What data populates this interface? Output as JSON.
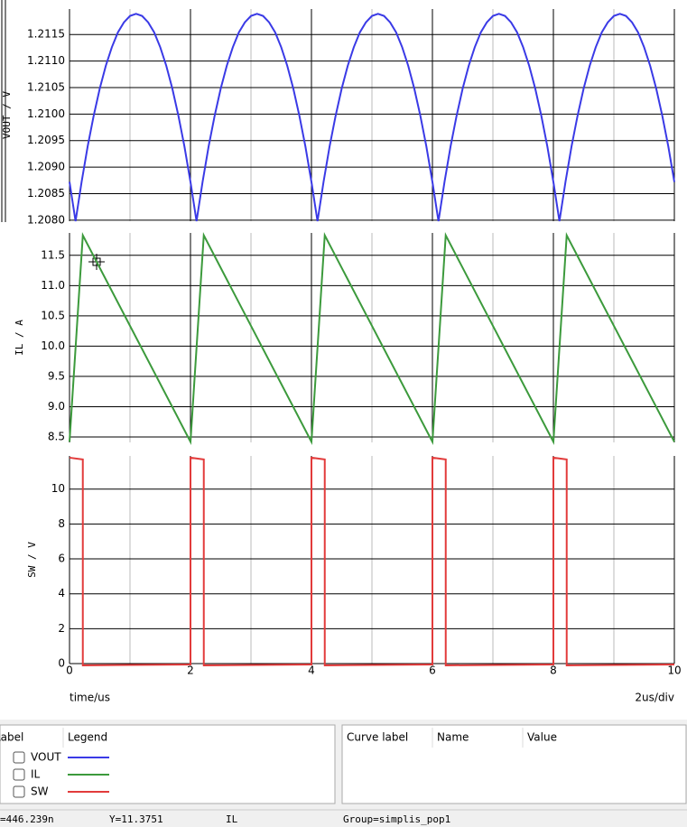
{
  "chart_data": [
    {
      "type": "line",
      "ylabel": "VOUT / V",
      "x": [
        0,
        0.1,
        0.2,
        0.3,
        0.4,
        0.5,
        0.6,
        0.7,
        0.8,
        0.9,
        1,
        1.1,
        1.2,
        1.3,
        1.4,
        1.5,
        1.6,
        1.7,
        1.8,
        1.9,
        2,
        2.1,
        2.2,
        2.3,
        2.4,
        2.5,
        2.6,
        2.7,
        2.8,
        2.9,
        3,
        3.1,
        3.2,
        3.3,
        3.4,
        3.5,
        3.6,
        3.7,
        3.8,
        3.9,
        4,
        4.1,
        4.2,
        4.3,
        4.4,
        4.5,
        4.6,
        4.7,
        4.8,
        4.9,
        5,
        5.1,
        5.2,
        5.3,
        5.4,
        5.5,
        5.6,
        5.7,
        5.8,
        5.9,
        6,
        6.1,
        6.2,
        6.3,
        6.4,
        6.5,
        6.6,
        6.7,
        6.8,
        6.9,
        7,
        7.1,
        7.2,
        7.3,
        7.4,
        7.5,
        7.6,
        7.7,
        7.8,
        7.9,
        8,
        8.1,
        8.2,
        8.3,
        8.4,
        8.5,
        8.6,
        8.7,
        8.8,
        8.9,
        9,
        9.1,
        9.2,
        9.3,
        9.4,
        9.5,
        9.6,
        9.7,
        9.8,
        9.9,
        10
      ],
      "series": [
        {
          "name": "VOUT",
          "color": "#3a3ae6",
          "values": [
            1.20872,
            1.20798,
            1.20872,
            1.20939,
            1.20997,
            1.21048,
            1.21091,
            1.21126,
            1.21154,
            1.21173,
            1.21185,
            1.21189,
            1.21185,
            1.21173,
            1.21154,
            1.21126,
            1.21091,
            1.21048,
            1.20997,
            1.20939,
            1.20872,
            1.20798,
            1.20872,
            1.20939,
            1.20997,
            1.21048,
            1.21091,
            1.21126,
            1.21154,
            1.21173,
            1.21185,
            1.21189,
            1.21185,
            1.21173,
            1.21154,
            1.21126,
            1.21091,
            1.21048,
            1.20997,
            1.20939,
            1.20872,
            1.20798,
            1.20872,
            1.20939,
            1.20997,
            1.21048,
            1.21091,
            1.21126,
            1.21154,
            1.21173,
            1.21185,
            1.21189,
            1.21185,
            1.21173,
            1.21154,
            1.21126,
            1.21091,
            1.21048,
            1.20997,
            1.20939,
            1.20872,
            1.20798,
            1.20872,
            1.20939,
            1.20997,
            1.21048,
            1.21091,
            1.21126,
            1.21154,
            1.21173,
            1.21185,
            1.21189,
            1.21185,
            1.21173,
            1.21154,
            1.21126,
            1.21091,
            1.21048,
            1.20997,
            1.20939,
            1.20872,
            1.20798,
            1.20872,
            1.20939,
            1.20997,
            1.21048,
            1.21091,
            1.21126,
            1.21154,
            1.21173,
            1.21185,
            1.21189,
            1.21185,
            1.21173,
            1.21154,
            1.21126,
            1.21091,
            1.21048,
            1.20997,
            1.20939,
            1.20872
          ]
        }
      ],
      "xlim": [
        0,
        10
      ],
      "ylim": [
        1.20798,
        1.21198
      ],
      "yticks": [
        {
          "value": 1.208,
          "label": "1.2080"
        },
        {
          "value": 1.2085,
          "label": "1.2085"
        },
        {
          "value": 1.209,
          "label": "1.2090"
        },
        {
          "value": 1.2095,
          "label": "1.2095"
        },
        {
          "value": 1.21,
          "label": "1.2100"
        },
        {
          "value": 1.2105,
          "label": "1.2105"
        },
        {
          "value": 1.211,
          "label": "1.2110"
        },
        {
          "value": 1.2115,
          "label": "1.2115"
        }
      ]
    },
    {
      "type": "line",
      "ylabel": "IL / A",
      "x": [
        0,
        0.22,
        2,
        2.22,
        4,
        4.22,
        6,
        6.22,
        8,
        8.22,
        10
      ],
      "series": [
        {
          "name": "IL",
          "color": "#3c9a3c",
          "values": [
            8.42,
            11.83,
            8.42,
            11.83,
            8.42,
            11.83,
            8.42,
            11.83,
            8.42,
            11.83,
            8.42
          ]
        }
      ],
      "xlim": [
        0,
        10
      ],
      "ylim": [
        8.41,
        11.87
      ],
      "yticks": [
        8.5,
        {
          "value": 9,
          "label": "9.0"
        },
        9.5,
        {
          "value": 10,
          "label": "10.0"
        },
        10.5,
        {
          "value": 11,
          "label": "11.0"
        },
        11.5
      ]
    },
    {
      "type": "line",
      "ylabel": "SW / V",
      "xlabel": "time/us",
      "annotation": "2us/div",
      "x": [
        0,
        0.22,
        0.22,
        2,
        2,
        2.22,
        2.22,
        4,
        4,
        4.22,
        4.22,
        6,
        6,
        6.22,
        6.22,
        8,
        8,
        8.22,
        8.22,
        10
      ],
      "series": [
        {
          "name": "SW",
          "color": "#e23b3b",
          "values": [
            11.8,
            11.7,
            -0.1,
            -0.05,
            11.8,
            11.7,
            -0.1,
            -0.05,
            11.8,
            11.7,
            -0.1,
            -0.05,
            11.8,
            11.7,
            -0.1,
            -0.05,
            11.8,
            11.7,
            -0.1,
            -0.05
          ]
        }
      ],
      "xlim": [
        0,
        10
      ],
      "ylim": [
        0,
        11.9
      ],
      "xticks": [
        0,
        2,
        4,
        6,
        8,
        10
      ],
      "yticks": [
        0,
        2,
        4,
        6,
        8,
        10
      ]
    }
  ],
  "legend_panel": {
    "headers": [
      "Label",
      "Legend"
    ]
  },
  "values_panel": {
    "headers": [
      "Curve label",
      "Name",
      "Value"
    ]
  },
  "status_bar": [
    "=446.239n",
    "Y=11.3751",
    "IL",
    "Group=simplis_pop1"
  ]
}
